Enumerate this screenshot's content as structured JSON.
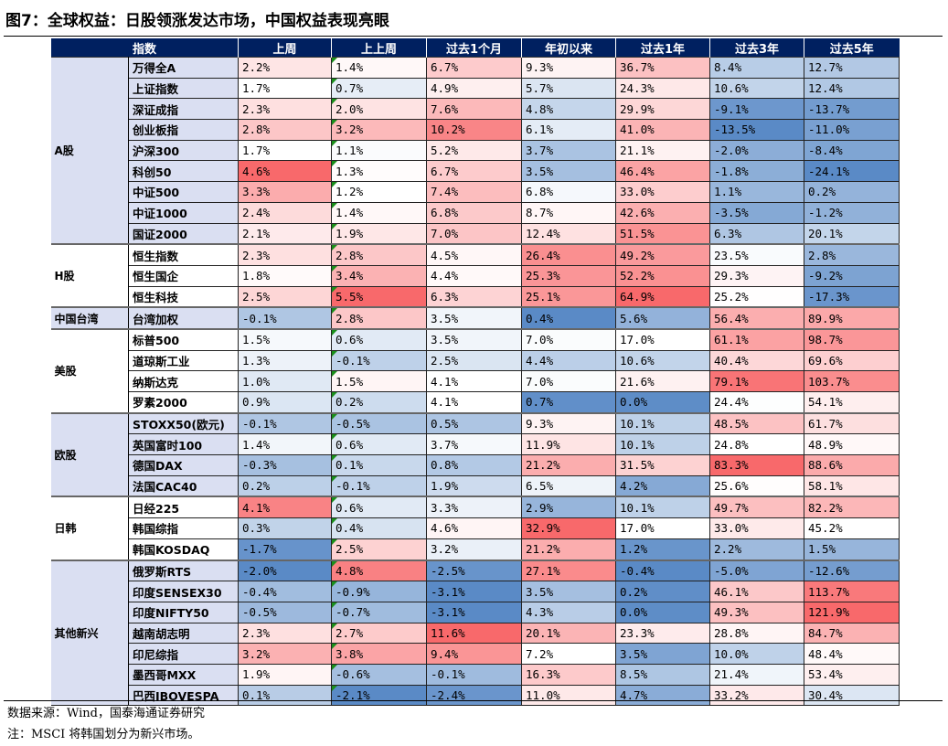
{
  "title": "图7：全球权益：日股领涨发达市场，中国权益表现亮眼",
  "headers": [
    "指数",
    "上周",
    "上上周",
    "过去1个月",
    "年初以来",
    "过去1年",
    "过去3年",
    "过去5年"
  ],
  "colors": {
    "low": "#5a8ac6",
    "mid": "#ffffff",
    "high": "#f8696b",
    "header": "#002060",
    "group_shade": "#dadff2"
  },
  "chart_data": {
    "type": "heatmap",
    "title": "全球权益：日股领涨发达市场，中国权益表现亮眼",
    "unit": "%",
    "columns": [
      "上周",
      "上上周",
      "过去1个月",
      "年初以来",
      "过去1年",
      "过去3年",
      "过去5年"
    ],
    "groups": [
      {
        "name": "A股",
        "rows": [
          {
            "index": "万得全A",
            "values": [
              2.2,
              1.4,
              6.7,
              9.3,
              36.7,
              8.4,
              12.7
            ]
          },
          {
            "index": "上证指数",
            "values": [
              1.7,
              0.7,
              4.9,
              5.7,
              24.3,
              10.6,
              12.4
            ]
          },
          {
            "index": "深证成指",
            "values": [
              2.3,
              2.0,
              7.6,
              4.8,
              29.9,
              -9.1,
              -13.7
            ]
          },
          {
            "index": "创业板指",
            "values": [
              2.8,
              3.2,
              10.2,
              6.1,
              41.0,
              -13.5,
              -11.0
            ]
          },
          {
            "index": "沪深300",
            "values": [
              1.7,
              1.1,
              5.2,
              3.7,
              21.1,
              -2.0,
              -8.4
            ]
          },
          {
            "index": "科创50",
            "values": [
              4.6,
              1.3,
              6.7,
              3.5,
              46.4,
              -1.8,
              -24.1
            ]
          },
          {
            "index": "中证500",
            "values": [
              3.3,
              1.2,
              7.4,
              6.8,
              33.0,
              1.1,
              0.2
            ]
          },
          {
            "index": "中证1000",
            "values": [
              2.4,
              1.4,
              6.8,
              8.7,
              42.6,
              -3.5,
              -1.2
            ]
          },
          {
            "index": "国证2000",
            "values": [
              2.1,
              1.9,
              7.0,
              12.4,
              51.5,
              6.3,
              20.1
            ]
          }
        ]
      },
      {
        "name": "H股",
        "rows": [
          {
            "index": "恒生指数",
            "values": [
              2.3,
              2.8,
              4.5,
              26.4,
              49.2,
              23.5,
              2.8
            ]
          },
          {
            "index": "恒生国企",
            "values": [
              1.8,
              3.4,
              4.4,
              25.3,
              52.2,
              29.3,
              -9.2
            ]
          },
          {
            "index": "恒生科技",
            "values": [
              2.5,
              5.5,
              6.3,
              25.1,
              64.9,
              25.2,
              -17.3
            ]
          }
        ]
      },
      {
        "name": "中国台湾",
        "rows": [
          {
            "index": "台湾加权",
            "values": [
              -0.1,
              2.8,
              3.5,
              0.4,
              5.6,
              56.4,
              89.9
            ]
          }
        ]
      },
      {
        "name": "美股",
        "rows": [
          {
            "index": "标普500",
            "values": [
              1.5,
              0.6,
              3.5,
              7.0,
              17.0,
              61.1,
              98.7
            ]
          },
          {
            "index": "道琼斯工业",
            "values": [
              1.3,
              -0.1,
              2.5,
              4.4,
              10.6,
              40.4,
              69.6
            ]
          },
          {
            "index": "纳斯达克",
            "values": [
              1.0,
              1.5,
              4.1,
              7.0,
              21.6,
              79.1,
              103.7
            ]
          },
          {
            "index": "罗素2000",
            "values": [
              0.9,
              0.2,
              4.1,
              0.7,
              0.0,
              24.4,
              54.1
            ]
          }
        ]
      },
      {
        "name": "欧股",
        "rows": [
          {
            "index": "STOXX50(欧元)",
            "values": [
              -0.1,
              -0.5,
              0.5,
              9.3,
              10.1,
              48.5,
              61.7
            ]
          },
          {
            "index": "英国富时100",
            "values": [
              1.4,
              0.6,
              3.7,
              11.9,
              10.1,
              24.8,
              48.9
            ]
          },
          {
            "index": "德国DAX",
            "values": [
              -0.3,
              0.1,
              0.8,
              21.2,
              31.5,
              83.3,
              88.6
            ]
          },
          {
            "index": "法国CAC40",
            "values": [
              0.2,
              -0.1,
              1.9,
              6.5,
              4.2,
              25.6,
              58.1
            ]
          }
        ]
      },
      {
        "name": "日韩",
        "rows": [
          {
            "index": "日经225",
            "values": [
              4.1,
              0.6,
              3.3,
              2.9,
              10.1,
              49.7,
              82.2
            ]
          },
          {
            "index": "韩国综指",
            "values": [
              0.3,
              0.4,
              4.6,
              32.9,
              17.0,
              33.0,
              45.2
            ]
          },
          {
            "index": "韩国KOSDAQ",
            "values": [
              -1.7,
              2.5,
              3.2,
              21.2,
              1.2,
              2.2,
              1.5
            ]
          }
        ]
      },
      {
        "name": "其他新兴",
        "rows": [
          {
            "index": "俄罗斯RTS",
            "values": [
              -2.0,
              4.8,
              -2.5,
              27.1,
              -0.4,
              -5.0,
              -12.6
            ]
          },
          {
            "index": "印度SENSEX30",
            "values": [
              -0.4,
              -0.9,
              -3.1,
              3.5,
              0.2,
              46.1,
              113.7
            ]
          },
          {
            "index": "印度NIFTY50",
            "values": [
              -0.5,
              -0.7,
              -3.1,
              4.3,
              0.0,
              49.3,
              121.9
            ]
          },
          {
            "index": "越南胡志明",
            "values": [
              2.3,
              2.7,
              11.6,
              20.1,
              23.3,
              28.8,
              84.7
            ]
          },
          {
            "index": "印尼综指",
            "values": [
              3.2,
              3.8,
              9.4,
              7.2,
              3.5,
              10.0,
              48.4
            ]
          },
          {
            "index": "墨西哥MXX",
            "values": [
              1.9,
              -0.6,
              -0.1,
              16.3,
              8.5,
              21.4,
              53.4
            ]
          },
          {
            "index": "巴西IBOVESPA",
            "values": [
              0.1,
              -2.1,
              -2.4,
              11.0,
              4.7,
              33.2,
              30.4
            ]
          }
        ]
      }
    ]
  },
  "footer": {
    "source": "数据来源：Wind，国泰海通证券研究",
    "note": "注：MSCI 将韩国划分为新兴市场。"
  }
}
